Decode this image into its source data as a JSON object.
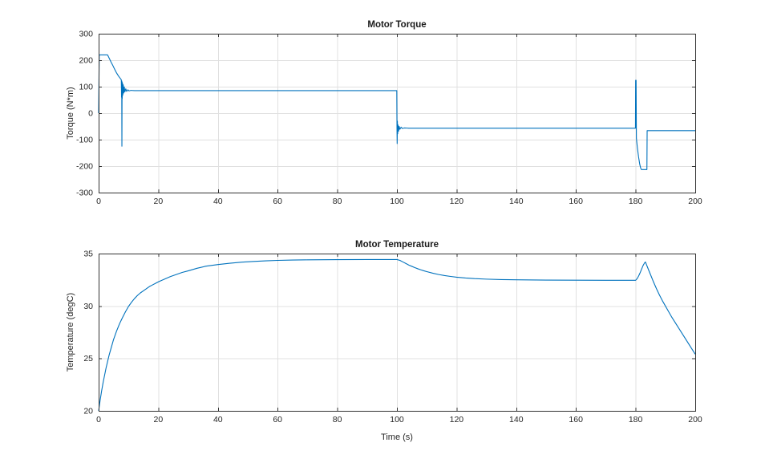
{
  "window": {
    "background": "#ffffff"
  },
  "style": {
    "line_color": "#0072BD",
    "grid_color": "#e0e0e0",
    "axis_color": "#333333",
    "tick_label_color": "#262626",
    "title_color": "#1a1a1a",
    "plot_background": "#ffffff"
  },
  "chart_data": [
    {
      "type": "line",
      "title": "Motor Torque",
      "xlabel": "",
      "ylabel": "Torque (N*m)",
      "xlim": [
        0,
        200
      ],
      "ylim": [
        -300,
        300
      ],
      "xticks": [
        0,
        20,
        40,
        60,
        80,
        100,
        120,
        140,
        160,
        180,
        200
      ],
      "yticks": [
        -300,
        -200,
        -100,
        0,
        100,
        200,
        300
      ],
      "grid": true,
      "legend": "none",
      "series": [
        {
          "name": "torque",
          "points": [
            [
              0,
              0
            ],
            [
              0.2,
              220
            ],
            [
              3,
              220
            ],
            [
              3.6,
              206
            ],
            [
              4.2,
              192
            ],
            [
              4.8,
              179
            ],
            [
              5.4,
              165
            ],
            [
              6,
              152
            ],
            [
              6.6,
              141
            ],
            [
              7.2,
              132
            ],
            [
              7.6,
              126
            ],
            [
              7.68,
              60
            ],
            [
              7.74,
              122
            ],
            [
              7.8,
              -125
            ],
            [
              7.86,
              118
            ],
            [
              7.92,
              55
            ],
            [
              8,
              114
            ],
            [
              8.1,
              68
            ],
            [
              8.25,
              107
            ],
            [
              8.4,
              76
            ],
            [
              8.6,
              99
            ],
            [
              8.8,
              80
            ],
            [
              9.1,
              92
            ],
            [
              9.4,
              82
            ],
            [
              9.8,
              88
            ],
            [
              10.2,
              84
            ],
            [
              10.8,
              86
            ],
            [
              12,
              85
            ],
            [
              99.95,
              85
            ],
            [
              100.02,
              -57
            ],
            [
              100.08,
              -115
            ],
            [
              100.15,
              -30
            ],
            [
              100.25,
              -78
            ],
            [
              100.4,
              -45
            ],
            [
              100.55,
              -68
            ],
            [
              100.75,
              -50
            ],
            [
              101,
              -61
            ],
            [
              101.4,
              -53
            ],
            [
              101.8,
              -58
            ],
            [
              102.5,
              -56
            ],
            [
              104,
              -57
            ],
            [
              179.96,
              -57
            ],
            [
              180.02,
              124
            ],
            [
              180.18,
              124
            ],
            [
              180.28,
              -95
            ],
            [
              180.6,
              -130
            ],
            [
              181,
              -165
            ],
            [
              181.4,
              -193
            ],
            [
              181.7,
              -207
            ],
            [
              181.95,
              -213
            ],
            [
              183.8,
              -213
            ],
            [
              183.88,
              -66
            ],
            [
              200,
              -66
            ]
          ]
        }
      ]
    },
    {
      "type": "line",
      "title": "Motor Temperature",
      "xlabel": "Time (s)",
      "ylabel": "Temperature (degC)",
      "xlim": [
        0,
        200
      ],
      "ylim": [
        20,
        35
      ],
      "xticks": [
        0,
        20,
        40,
        60,
        80,
        100,
        120,
        140,
        160,
        180,
        200
      ],
      "yticks": [
        20,
        25,
        30,
        35
      ],
      "grid": true,
      "legend": "none",
      "series": [
        {
          "name": "temperature",
          "points": [
            [
              0,
              20
            ],
            [
              0.5,
              21
            ],
            [
              1,
              21.9
            ],
            [
              1.5,
              22.7
            ],
            [
              2,
              23.4
            ],
            [
              2.5,
              24.1
            ],
            [
              3,
              24.7
            ],
            [
              3.5,
              25.3
            ],
            [
              4,
              25.8
            ],
            [
              4.5,
              26.3
            ],
            [
              5,
              26.8
            ],
            [
              5.5,
              27.2
            ],
            [
              6,
              27.6
            ],
            [
              6.5,
              27.95
            ],
            [
              7,
              28.3
            ],
            [
              7.5,
              28.6
            ],
            [
              8,
              28.9
            ],
            [
              9,
              29.45
            ],
            [
              10,
              29.95
            ],
            [
              11,
              30.35
            ],
            [
              12,
              30.7
            ],
            [
              13,
              31
            ],
            [
              14,
              31.25
            ],
            [
              15,
              31.45
            ],
            [
              16,
              31.65
            ],
            [
              17,
              31.85
            ],
            [
              18,
              32
            ],
            [
              19,
              32.15
            ],
            [
              20,
              32.3
            ],
            [
              22,
              32.55
            ],
            [
              24,
              32.8
            ],
            [
              26,
              33
            ],
            [
              28,
              33.2
            ],
            [
              30,
              33.35
            ],
            [
              33,
              33.6
            ],
            [
              36,
              33.8
            ],
            [
              40,
              33.95
            ],
            [
              44,
              34.08
            ],
            [
              48,
              34.18
            ],
            [
              52,
              34.25
            ],
            [
              56,
              34.31
            ],
            [
              60,
              34.35
            ],
            [
              65,
              34.38
            ],
            [
              70,
              34.4
            ],
            [
              80,
              34.42
            ],
            [
              90,
              34.43
            ],
            [
              100,
              34.43
            ],
            [
              101,
              34.35
            ],
            [
              102,
              34.2
            ],
            [
              103,
              34.05
            ],
            [
              104,
              33.9
            ],
            [
              105,
              33.78
            ],
            [
              106,
              33.66
            ],
            [
              107,
              33.55
            ],
            [
              108,
              33.45
            ],
            [
              109,
              33.36
            ],
            [
              110,
              33.28
            ],
            [
              112,
              33.13
            ],
            [
              114,
              33
            ],
            [
              116,
              32.9
            ],
            [
              118,
              32.82
            ],
            [
              120,
              32.75
            ],
            [
              123,
              32.67
            ],
            [
              126,
              32.61
            ],
            [
              130,
              32.56
            ],
            [
              135,
              32.52
            ],
            [
              140,
              32.5
            ],
            [
              150,
              32.47
            ],
            [
              160,
              32.46
            ],
            [
              170,
              32.45
            ],
            [
              180,
              32.45
            ],
            [
              180.5,
              32.6
            ],
            [
              181,
              32.85
            ],
            [
              181.5,
              33.15
            ],
            [
              182,
              33.5
            ],
            [
              182.5,
              33.85
            ],
            [
              183,
              34.1
            ],
            [
              183.3,
              34.2
            ],
            [
              184,
              33.7
            ],
            [
              185,
              33
            ],
            [
              186,
              32.3
            ],
            [
              187,
              31.65
            ],
            [
              188,
              31.05
            ],
            [
              189,
              30.5
            ],
            [
              190,
              30
            ],
            [
              191,
              29.5
            ],
            [
              192,
              29
            ],
            [
              193,
              28.55
            ],
            [
              194,
              28.1
            ],
            [
              195,
              27.65
            ],
            [
              196,
              27.2
            ],
            [
              197,
              26.75
            ],
            [
              198,
              26.3
            ],
            [
              199,
              25.85
            ],
            [
              200,
              25.4
            ]
          ]
        }
      ]
    }
  ]
}
